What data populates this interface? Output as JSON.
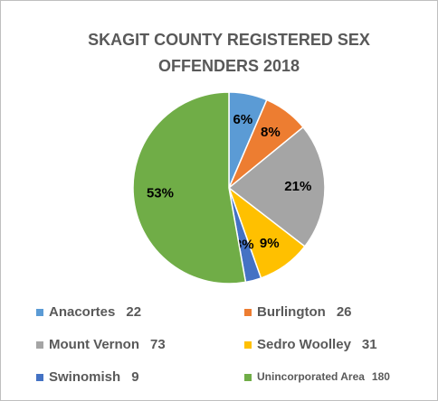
{
  "chart_data": {
    "type": "pie",
    "title": "SKAGIT COUNTY REGISTERED SEX OFFENDERS 2018",
    "title_lines": [
      "SKAGIT COUNTY REGISTERED SEX",
      "OFFENDERS 2018"
    ],
    "categories": [
      "Anacortes",
      "Burlington",
      "Mount Vernon",
      "Sedro Woolley",
      "Swinomish",
      "Unincorporated Area"
    ],
    "values": [
      22,
      26,
      73,
      31,
      9,
      180
    ],
    "percent_labels": [
      "6%",
      "8%",
      "21%",
      "9%",
      "3%",
      "53%"
    ],
    "colors": [
      "#5b9bd5",
      "#ed7d31",
      "#a5a5a5",
      "#ffc000",
      "#4472c4",
      "#70ad47"
    ],
    "legend": "bottom"
  }
}
